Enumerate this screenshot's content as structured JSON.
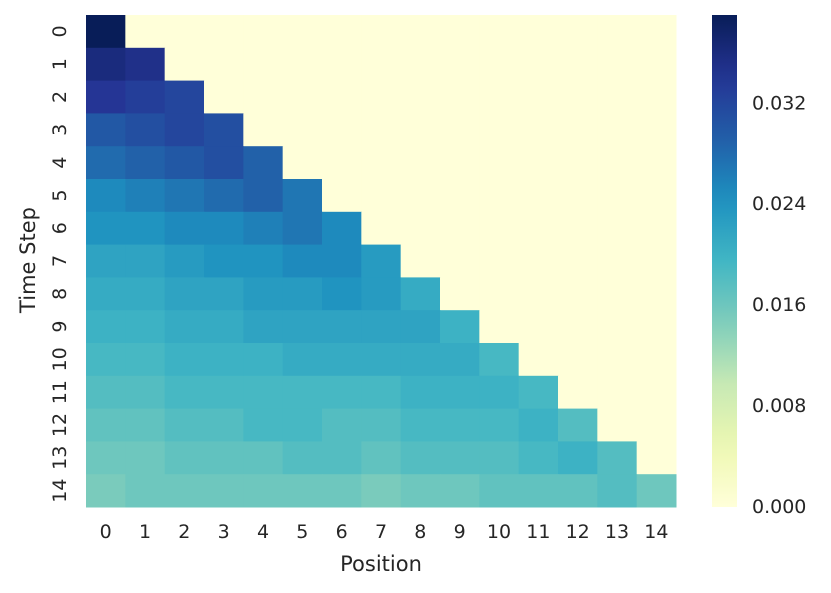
{
  "chart_data": {
    "type": "heatmap",
    "title": "",
    "xlabel": "Position",
    "ylabel": "Time Step",
    "x_tick_labels": [
      "0",
      "1",
      "2",
      "3",
      "4",
      "5",
      "6",
      "7",
      "8",
      "9",
      "10",
      "11",
      "12",
      "13",
      "14"
    ],
    "y_tick_labels": [
      "0",
      "1",
      "2",
      "3",
      "4",
      "5",
      "6",
      "7",
      "8",
      "9",
      "10",
      "11",
      "12",
      "13",
      "14"
    ],
    "colormap": "YlGnBu",
    "colorbar": {
      "range": [
        0,
        0.039
      ],
      "tick_values": [
        0,
        0.008,
        0.016,
        0.024,
        0.032
      ],
      "tick_labels": [
        "0.000",
        "0.008",
        "0.016",
        "0.024",
        "0.032"
      ]
    },
    "masked_upper_triangle_value": 0,
    "values": [
      [
        0.039
      ],
      [
        0.036,
        0.035
      ],
      [
        0.034,
        0.033,
        0.032
      ],
      [
        0.03,
        0.031,
        0.032,
        0.031
      ],
      [
        0.028,
        0.029,
        0.03,
        0.031,
        0.029
      ],
      [
        0.025,
        0.026,
        0.027,
        0.028,
        0.029,
        0.027
      ],
      [
        0.024,
        0.024,
        0.025,
        0.025,
        0.026,
        0.027,
        0.025
      ],
      [
        0.022,
        0.022,
        0.023,
        0.024,
        0.024,
        0.025,
        0.025,
        0.023
      ],
      [
        0.021,
        0.021,
        0.022,
        0.022,
        0.023,
        0.023,
        0.024,
        0.023,
        0.021
      ],
      [
        0.02,
        0.02,
        0.021,
        0.021,
        0.022,
        0.022,
        0.022,
        0.022,
        0.022,
        0.02
      ],
      [
        0.019,
        0.019,
        0.02,
        0.02,
        0.02,
        0.021,
        0.021,
        0.021,
        0.021,
        0.021,
        0.019
      ],
      [
        0.018,
        0.018,
        0.019,
        0.019,
        0.019,
        0.019,
        0.019,
        0.019,
        0.02,
        0.02,
        0.02,
        0.019
      ],
      [
        0.017,
        0.017,
        0.018,
        0.018,
        0.019,
        0.019,
        0.018,
        0.018,
        0.019,
        0.019,
        0.019,
        0.02,
        0.018
      ],
      [
        0.016,
        0.016,
        0.017,
        0.017,
        0.017,
        0.018,
        0.018,
        0.017,
        0.018,
        0.018,
        0.018,
        0.019,
        0.02,
        0.018
      ],
      [
        0.015,
        0.016,
        0.016,
        0.016,
        0.016,
        0.016,
        0.016,
        0.015,
        0.016,
        0.016,
        0.017,
        0.017,
        0.017,
        0.018,
        0.016
      ]
    ]
  }
}
